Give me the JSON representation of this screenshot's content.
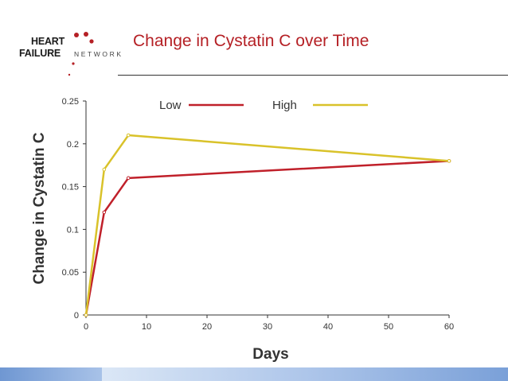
{
  "slide": {
    "title": "Change in Cystatin C over Time"
  },
  "logo": {
    "line1": "HEART",
    "line2": "FAILURE",
    "network": "NETWORK",
    "dot_color": "#b52025"
  },
  "colors": {
    "title": "#b52025",
    "low": "#c0202a",
    "high": "#d9c22a",
    "axis": "#333333"
  },
  "chart_data": {
    "type": "line",
    "title": "",
    "xlabel": "Days",
    "ylabel": "Change in Cystatin C",
    "xlim": [
      0,
      60
    ],
    "ylim": [
      0,
      0.25
    ],
    "xticks": [
      "0",
      "10",
      "20",
      "30",
      "40",
      "50",
      "60"
    ],
    "yticks": [
      "0",
      "0.05",
      "0.1",
      "0.15",
      "0.2",
      "0.25"
    ],
    "grid": false,
    "legend_position": "top",
    "series": [
      {
        "name": "Low",
        "color": "#c0202a",
        "x": [
          0,
          3,
          7,
          60
        ],
        "y": [
          0,
          0.12,
          0.16,
          0.18
        ]
      },
      {
        "name": "High",
        "color": "#d9c22a",
        "x": [
          0,
          3,
          7,
          60
        ],
        "y": [
          0,
          0.17,
          0.21,
          0.18
        ]
      }
    ]
  }
}
